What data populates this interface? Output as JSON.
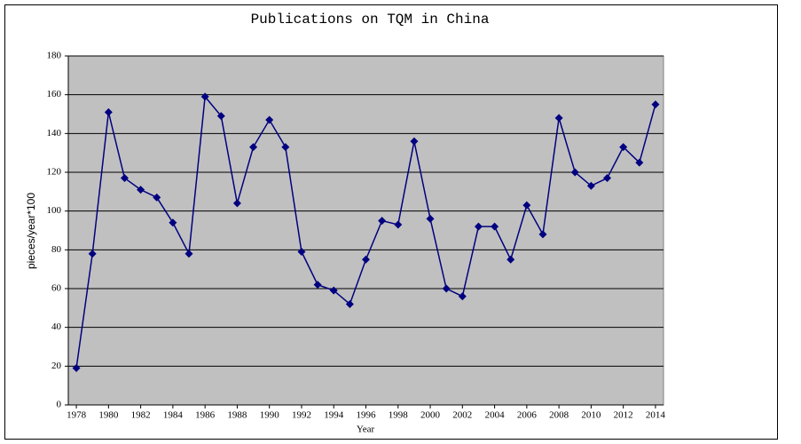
{
  "chart_data": {
    "type": "line",
    "title": "Publications on TQM in China",
    "x_label": "Year",
    "y_label": "pieces/year*100",
    "x": [
      1978,
      1979,
      1980,
      1981,
      1982,
      1983,
      1984,
      1985,
      1986,
      1987,
      1988,
      1989,
      1990,
      1991,
      1992,
      1993,
      1994,
      1995,
      1996,
      1997,
      1998,
      1999,
      2000,
      2001,
      2002,
      2003,
      2004,
      2005,
      2006,
      2007,
      2008,
      2009,
      2010,
      2011,
      2012,
      2013,
      2014
    ],
    "series": [
      {
        "color": "#000080",
        "values": [
          19,
          78,
          151,
          117,
          111,
          107,
          94,
          78,
          159,
          149,
          104,
          133,
          147,
          133,
          79,
          62,
          59,
          52,
          75,
          95,
          93,
          136,
          96,
          60,
          56,
          92,
          92,
          75,
          103,
          88,
          148,
          120,
          113,
          117,
          133,
          125,
          155
        ]
      }
    ],
    "xlim": [
      1977.5,
      2014.5
    ],
    "xticks": [
      1978,
      1980,
      1982,
      1984,
      1986,
      1988,
      1990,
      1992,
      1994,
      1996,
      1998,
      2000,
      2002,
      2004,
      2006,
      2008,
      2010,
      2012,
      2014
    ],
    "ylim": [
      0,
      180
    ],
    "yticks": [
      0,
      20,
      40,
      60,
      80,
      100,
      120,
      140,
      160,
      180
    ],
    "grid": true,
    "plot_background": "#c0c0c0"
  }
}
